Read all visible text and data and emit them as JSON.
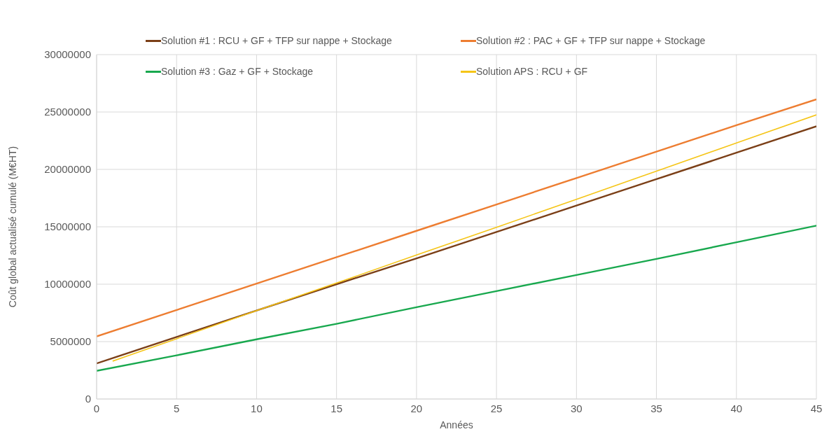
{
  "chart_data": {
    "type": "line",
    "xlabel": "Années",
    "ylabel": "Coût global actualisé cumulé (M€HT)",
    "xlim": [
      0,
      45
    ],
    "xticks": [
      0,
      5,
      10,
      15,
      20,
      25,
      30,
      35,
      40,
      45
    ],
    "ylim": [
      0,
      30000000
    ],
    "yticks": [
      0,
      5000000,
      10000000,
      15000000,
      20000000,
      25000000,
      30000000
    ],
    "grid": true,
    "legend": "top",
    "marker": "none",
    "line_style": "solid",
    "series": [
      {
        "name": "Solution #1 : RCU + GF + TFP sur nappe + Stockage",
        "color": "#7b3f17",
        "x": [
          0,
          5,
          10,
          15,
          20,
          25,
          30,
          35,
          40,
          45
        ],
        "values": [
          3100000,
          5400000,
          7700000,
          10000000,
          12250000,
          14550000,
          16850000,
          19150000,
          21450000,
          23750000
        ]
      },
      {
        "name": "Solution #2 : PAC + GF + TFP sur nappe + Stockage",
        "color": "#ed7d31",
        "x": [
          0,
          5,
          10,
          15,
          20,
          25,
          30,
          35,
          40,
          45
        ],
        "values": [
          5450000,
          7750000,
          10050000,
          12350000,
          14650000,
          16950000,
          19250000,
          21550000,
          23850000,
          26100000
        ]
      },
      {
        "name": "Solution #3 : Gaz + GF + Stockage",
        "color": "#18a84e",
        "x": [
          0,
          5,
          10,
          15,
          20,
          25,
          30,
          35,
          40,
          45
        ],
        "values": [
          2450000,
          3800000,
          5200000,
          6550000,
          8000000,
          9400000,
          10800000,
          12200000,
          13650000,
          15100000
        ]
      },
      {
        "name": "Solution APS : RCU + GF",
        "color": "#f5c518",
        "x": [
          1,
          5,
          10,
          15,
          20,
          25,
          30,
          35,
          40,
          45
        ],
        "values": [
          3300000,
          5250000,
          7700000,
          10100000,
          12550000,
          14950000,
          17400000,
          19850000,
          22300000,
          24750000
        ]
      }
    ]
  }
}
